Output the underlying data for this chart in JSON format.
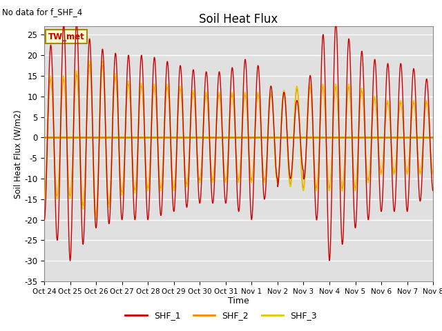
{
  "title": "Soil Heat Flux",
  "subtitle": "No data for f_SHF_4",
  "ylabel": "Soil Heat Flux (W/m2)",
  "xlabel": "Time",
  "ylim": [
    -35,
    27
  ],
  "yticks": [
    -35,
    -30,
    -25,
    -20,
    -15,
    -10,
    -5,
    0,
    5,
    10,
    15,
    20,
    25
  ],
  "bg_color": "#e0e0e0",
  "legend_label": "TW_met",
  "series_labels": [
    "SHF_1",
    "SHF_2",
    "SHF_3"
  ],
  "colors": [
    "#cc0000",
    "#ff8800",
    "#ddcc00"
  ],
  "xtick_labels": [
    "Oct 24",
    "Oct 25",
    "Oct 26",
    "Oct 27",
    "Oct 28",
    "Oct 29",
    "Oct 30",
    "Oct 31",
    "Nov 1",
    "Nov 2",
    "Nov 3",
    "Nov 4",
    "Nov 5",
    "Nov 6",
    "Nov 7",
    "Nov 8"
  ],
  "num_days": 15,
  "figsize": [
    6.4,
    4.8
  ],
  "dpi": 100
}
